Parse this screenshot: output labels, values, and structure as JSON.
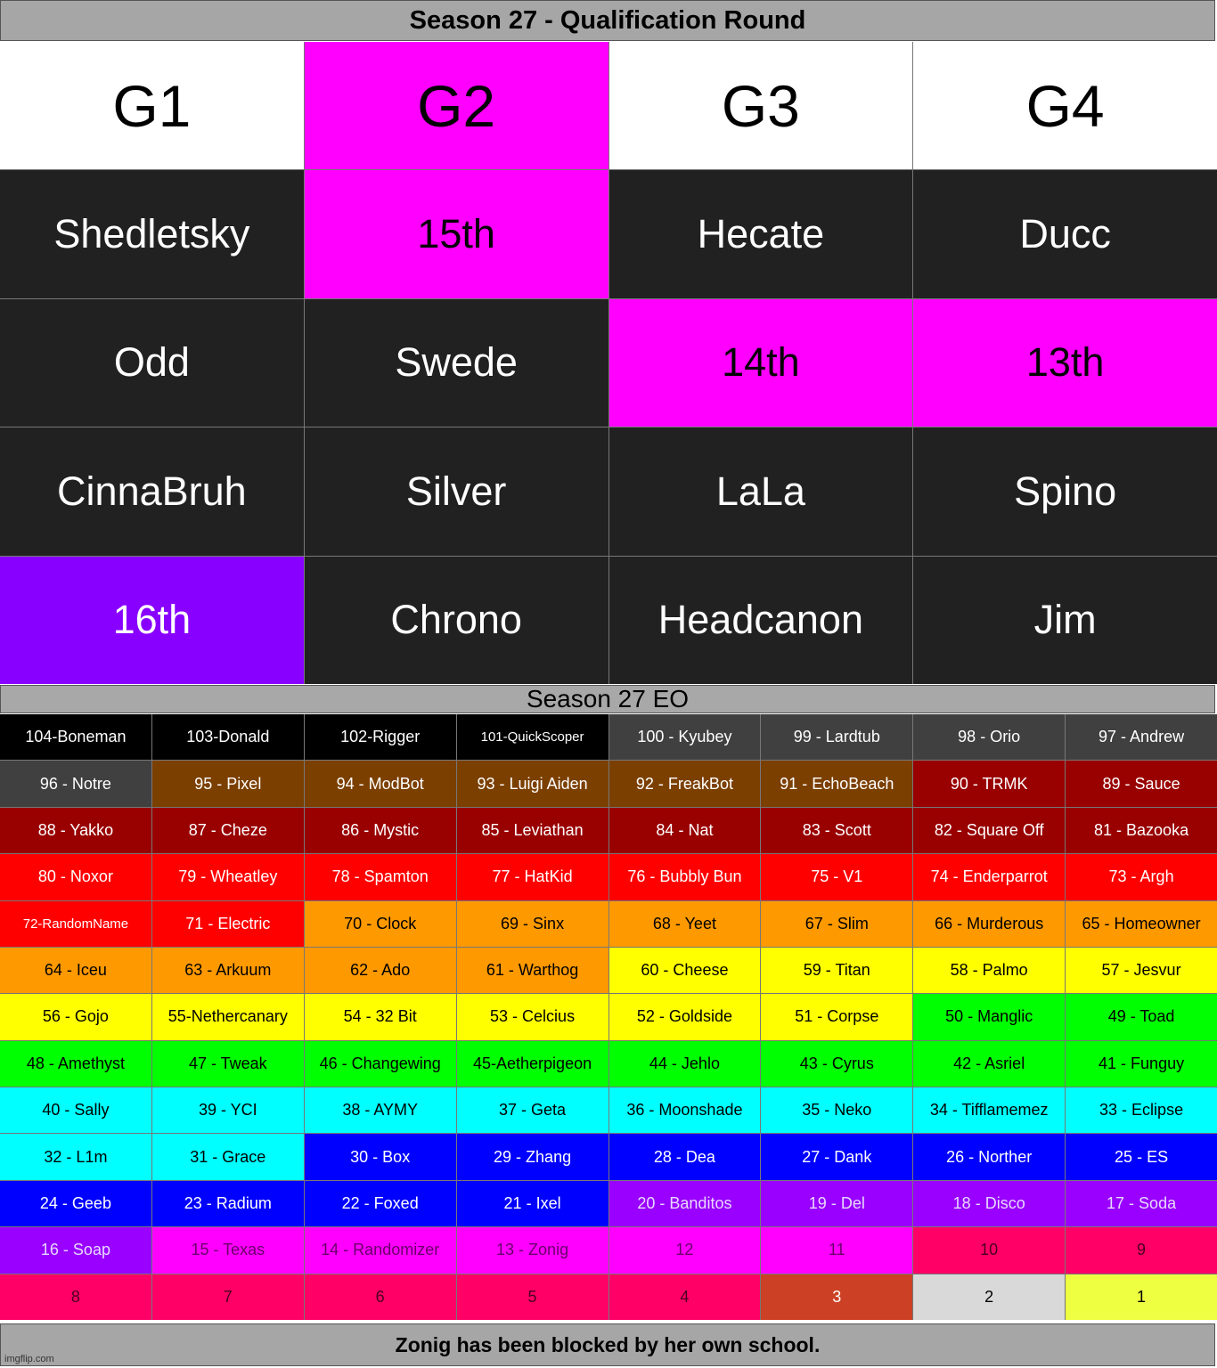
{
  "title": "Season 27 - Qualification Round",
  "colors": {
    "magenta": "#ff00ff",
    "purple": "#8800ff",
    "dark": "#212121",
    "black": "#000000",
    "gray": "#404040",
    "brown": "#7b3f00",
    "darkred": "#990000",
    "red": "#ff0000",
    "orange": "#ff9900",
    "yellow": "#ffff00",
    "green": "#00ff00",
    "cyan": "#00ffff",
    "blue": "#0000ff",
    "violet": "#9900ff",
    "pink": "#ff00ff",
    "crimson": "#ff0066",
    "rust": "#cc4125",
    "lightgray": "#d9d9d9",
    "lime": "#eeff41"
  },
  "qualification": {
    "headers": [
      "G1",
      "G2",
      "G3",
      "G4"
    ],
    "header_colors": [
      "white",
      "magenta",
      "white",
      "white"
    ],
    "rows": [
      [
        {
          "text": "Shedletsky",
          "color": "dark"
        },
        {
          "text": "15th",
          "color": "magenta"
        },
        {
          "text": "Hecate",
          "color": "dark"
        },
        {
          "text": "Ducc",
          "color": "dark"
        }
      ],
      [
        {
          "text": "Odd",
          "color": "dark"
        },
        {
          "text": "Swede",
          "color": "dark"
        },
        {
          "text": "14th",
          "color": "magenta"
        },
        {
          "text": "13th",
          "color": "magenta"
        }
      ],
      [
        {
          "text": "CinnaBruh",
          "color": "dark"
        },
        {
          "text": "Silver",
          "color": "dark"
        },
        {
          "text": "LaLa",
          "color": "dark"
        },
        {
          "text": "Spino",
          "color": "dark"
        }
      ],
      [
        {
          "text": "16th",
          "color": "purple"
        },
        {
          "text": "Chrono",
          "color": "dark"
        },
        {
          "text": "Headcanon",
          "color": "dark"
        },
        {
          "text": "Jim",
          "color": "dark"
        }
      ]
    ]
  },
  "eo": {
    "title": "Season 27 EO",
    "cells": [
      {
        "text": "104-Boneman",
        "color": "black"
      },
      {
        "text": "103-Donald",
        "color": "black"
      },
      {
        "text": "102-Rigger",
        "color": "black"
      },
      {
        "text": "101-QuickScoper",
        "color": "black",
        "small": true
      },
      {
        "text": "100 - Kyubey",
        "color": "gray"
      },
      {
        "text": "99 - Lardtub",
        "color": "gray"
      },
      {
        "text": "98 - Orio",
        "color": "gray"
      },
      {
        "text": "97 - Andrew",
        "color": "gray"
      },
      {
        "text": "96 - Notre",
        "color": "gray"
      },
      {
        "text": "95 - Pixel",
        "color": "brown"
      },
      {
        "text": "94 - ModBot",
        "color": "brown"
      },
      {
        "text": "93 - Luigi Aiden",
        "color": "brown"
      },
      {
        "text": "92 - FreakBot",
        "color": "brown"
      },
      {
        "text": "91 - EchoBeach",
        "color": "brown"
      },
      {
        "text": "90 - TRMK",
        "color": "darkred"
      },
      {
        "text": "89 - Sauce",
        "color": "darkred"
      },
      {
        "text": "88 - Yakko",
        "color": "darkred"
      },
      {
        "text": "87 - Cheze",
        "color": "darkred"
      },
      {
        "text": "86 - Mystic",
        "color": "darkred"
      },
      {
        "text": "85 - Leviathan",
        "color": "darkred"
      },
      {
        "text": "84 - Nat",
        "color": "darkred"
      },
      {
        "text": "83 - Scott",
        "color": "darkred"
      },
      {
        "text": "82 - Square Off",
        "color": "darkred"
      },
      {
        "text": "81 - Bazooka",
        "color": "darkred"
      },
      {
        "text": "80 - Noxor",
        "color": "red"
      },
      {
        "text": "79 - Wheatley",
        "color": "red"
      },
      {
        "text": "78 - Spamton",
        "color": "red"
      },
      {
        "text": "77 - HatKid",
        "color": "red"
      },
      {
        "text": "76 - Bubbly Bun",
        "color": "red"
      },
      {
        "text": "75 - V1",
        "color": "red"
      },
      {
        "text": "74 - Enderparrot",
        "color": "red"
      },
      {
        "text": "73 - Argh",
        "color": "red"
      },
      {
        "text": "72-RandomName",
        "color": "red",
        "small": true
      },
      {
        "text": "71 - Electric",
        "color": "red"
      },
      {
        "text": "70 - Clock",
        "color": "orange"
      },
      {
        "text": "69 - Sinx",
        "color": "orange"
      },
      {
        "text": "68 - Yeet",
        "color": "orange"
      },
      {
        "text": "67 - Slim",
        "color": "orange"
      },
      {
        "text": "66 - Murderous",
        "color": "orange"
      },
      {
        "text": "65 - Homeowner",
        "color": "orange"
      },
      {
        "text": "64 - Iceu",
        "color": "orange"
      },
      {
        "text": "63 - Arkuum",
        "color": "orange"
      },
      {
        "text": "62 - Ado",
        "color": "orange"
      },
      {
        "text": "61 - Warthog",
        "color": "orange"
      },
      {
        "text": "60 - Cheese",
        "color": "yellow"
      },
      {
        "text": "59 - Titan",
        "color": "yellow"
      },
      {
        "text": "58 - Palmo",
        "color": "yellow"
      },
      {
        "text": "57 - Jesvur",
        "color": "yellow"
      },
      {
        "text": "56 - Gojo",
        "color": "yellow"
      },
      {
        "text": "55-Nethercanary",
        "color": "yellow"
      },
      {
        "text": "54 - 32 Bit",
        "color": "yellow"
      },
      {
        "text": "53 - Celcius",
        "color": "yellow"
      },
      {
        "text": "52 - Goldside",
        "color": "yellow"
      },
      {
        "text": "51 - Corpse",
        "color": "yellow"
      },
      {
        "text": "50 - Manglic",
        "color": "green"
      },
      {
        "text": "49 - Toad",
        "color": "green"
      },
      {
        "text": "48 - Amethyst",
        "color": "green"
      },
      {
        "text": "47 - Tweak",
        "color": "green"
      },
      {
        "text": "46 - Changewing",
        "color": "green"
      },
      {
        "text": "45-Aetherpigeon",
        "color": "green"
      },
      {
        "text": "44 - Jehlo",
        "color": "green"
      },
      {
        "text": "43 - Cyrus",
        "color": "green"
      },
      {
        "text": "42 - Asriel",
        "color": "green"
      },
      {
        "text": "41 - Funguy",
        "color": "green"
      },
      {
        "text": "40 - Sally",
        "color": "cyan"
      },
      {
        "text": "39 - YCI",
        "color": "cyan"
      },
      {
        "text": "38 - AYMY",
        "color": "cyan"
      },
      {
        "text": "37 - Geta",
        "color": "cyan"
      },
      {
        "text": "36 - Moonshade",
        "color": "cyan"
      },
      {
        "text": "35 - Neko",
        "color": "cyan"
      },
      {
        "text": "34 - Tifflamemez",
        "color": "cyan"
      },
      {
        "text": "33 - Eclipse",
        "color": "cyan"
      },
      {
        "text": "32 - L1m",
        "color": "cyan"
      },
      {
        "text": "31 - Grace",
        "color": "cyan"
      },
      {
        "text": "30 - Box",
        "color": "blue"
      },
      {
        "text": "29 - Zhang",
        "color": "blue"
      },
      {
        "text": "28 - Dea",
        "color": "blue"
      },
      {
        "text": "27 - Dank",
        "color": "blue"
      },
      {
        "text": "26 - Norther",
        "color": "blue"
      },
      {
        "text": "25 - ES",
        "color": "blue"
      },
      {
        "text": "24 - Geeb",
        "color": "blue"
      },
      {
        "text": "23 - Radium",
        "color": "blue"
      },
      {
        "text": "22 - Foxed",
        "color": "blue"
      },
      {
        "text": "21 - Ixel",
        "color": "blue"
      },
      {
        "text": "20 - Banditos",
        "color": "violet"
      },
      {
        "text": "19 - Del",
        "color": "violet"
      },
      {
        "text": "18 - Disco",
        "color": "violet"
      },
      {
        "text": "17 - Soda",
        "color": "violet"
      },
      {
        "text": "16 - Soap",
        "color": "violet"
      },
      {
        "text": "15 - Texas",
        "color": "pink"
      },
      {
        "text": "14 - Randomizer",
        "color": "pink"
      },
      {
        "text": "13 - Zonig",
        "color": "pink"
      },
      {
        "text": "12",
        "color": "pink"
      },
      {
        "text": "11",
        "color": "pink"
      },
      {
        "text": "10",
        "color": "crimson"
      },
      {
        "text": "9",
        "color": "crimson"
      },
      {
        "text": "8",
        "color": "crimson"
      },
      {
        "text": "7",
        "color": "crimson"
      },
      {
        "text": "6",
        "color": "crimson"
      },
      {
        "text": "5",
        "color": "crimson"
      },
      {
        "text": "4",
        "color": "crimson"
      },
      {
        "text": "3",
        "color": "rust"
      },
      {
        "text": "2",
        "color": "lightgray"
      },
      {
        "text": "1",
        "color": "lime"
      }
    ]
  },
  "footer": "Zonig has been blocked by her own school.",
  "watermark": "imgflip.com"
}
